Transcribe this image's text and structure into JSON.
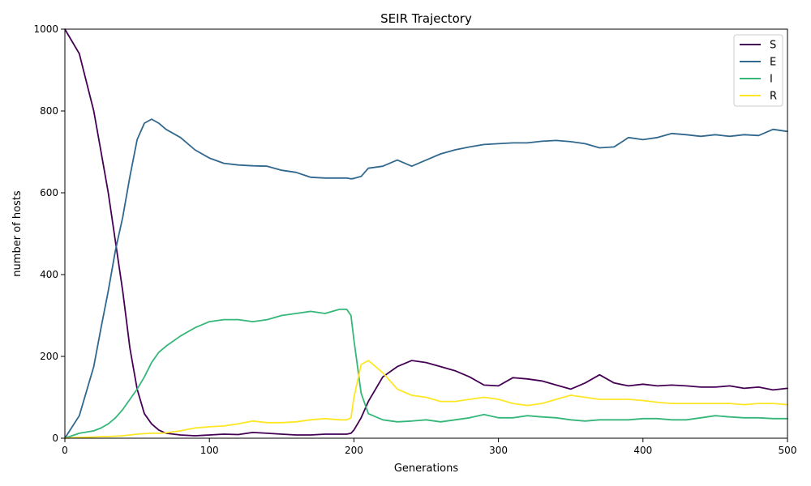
{
  "chart_data": {
    "type": "line",
    "title": "SEIR Trajectory",
    "xlabel": "Generations",
    "ylabel": "number of hosts",
    "xlim": [
      0,
      500
    ],
    "ylim": [
      0,
      1000
    ],
    "xticks": [
      0,
      100,
      200,
      300,
      400,
      500
    ],
    "yticks": [
      0,
      200,
      400,
      600,
      800,
      1000
    ],
    "grid": false,
    "legend_position": "top-right",
    "x": [
      0,
      10,
      20,
      25,
      30,
      35,
      40,
      45,
      50,
      55,
      60,
      65,
      70,
      80,
      90,
      100,
      110,
      120,
      130,
      140,
      150,
      160,
      170,
      180,
      190,
      195,
      198,
      200,
      205,
      210,
      220,
      230,
      240,
      250,
      260,
      270,
      280,
      290,
      300,
      310,
      320,
      330,
      340,
      350,
      360,
      370,
      380,
      390,
      400,
      410,
      420,
      430,
      440,
      450,
      460,
      470,
      480,
      490,
      500
    ],
    "series": [
      {
        "name": "S",
        "color": "#440154",
        "values": [
          1000,
          940,
          800,
          700,
          600,
          480,
          360,
          220,
          120,
          60,
          35,
          20,
          12,
          8,
          6,
          8,
          10,
          9,
          14,
          12,
          10,
          8,
          8,
          10,
          10,
          10,
          12,
          20,
          50,
          90,
          150,
          175,
          190,
          185,
          175,
          165,
          150,
          130,
          128,
          148,
          145,
          140,
          130,
          120,
          135,
          155,
          135,
          128,
          132,
          128,
          130,
          128,
          125,
          125,
          128,
          122,
          125,
          118,
          122
        ]
      },
      {
        "name": "E",
        "color": "#31688e",
        "values": [
          0,
          55,
          175,
          270,
          360,
          460,
          540,
          640,
          730,
          770,
          780,
          770,
          755,
          735,
          705,
          685,
          672,
          668,
          666,
          665,
          655,
          650,
          638,
          636,
          636,
          636,
          634,
          635,
          640,
          660,
          665,
          680,
          665,
          680,
          695,
          705,
          712,
          718,
          720,
          722,
          722,
          726,
          728,
          725,
          720,
          710,
          712,
          735,
          730,
          735,
          745,
          742,
          738,
          742,
          738,
          742,
          740,
          755,
          750
        ]
      },
      {
        "name": "I",
        "color": "#35b779",
        "values": [
          0,
          12,
          18,
          25,
          35,
          50,
          70,
          95,
          120,
          150,
          185,
          210,
          225,
          250,
          270,
          285,
          290,
          290,
          285,
          290,
          300,
          305,
          310,
          305,
          315,
          315,
          300,
          240,
          110,
          60,
          45,
          40,
          42,
          45,
          40,
          45,
          50,
          58,
          50,
          50,
          55,
          52,
          50,
          45,
          42,
          45,
          45,
          45,
          48,
          48,
          45,
          45,
          50,
          55,
          52,
          50,
          50,
          48,
          48
        ]
      },
      {
        "name": "R",
        "color": "#fde725",
        "values": [
          0,
          2,
          3,
          4,
          4,
          5,
          6,
          8,
          10,
          11,
          12,
          12,
          13,
          18,
          25,
          28,
          30,
          35,
          42,
          38,
          38,
          40,
          45,
          48,
          45,
          45,
          50,
          100,
          180,
          190,
          160,
          120,
          105,
          100,
          90,
          90,
          95,
          100,
          95,
          85,
          80,
          85,
          95,
          105,
          100,
          95,
          95,
          95,
          92,
          88,
          85,
          85,
          85,
          85,
          85,
          82,
          85,
          85,
          82
        ]
      }
    ]
  }
}
